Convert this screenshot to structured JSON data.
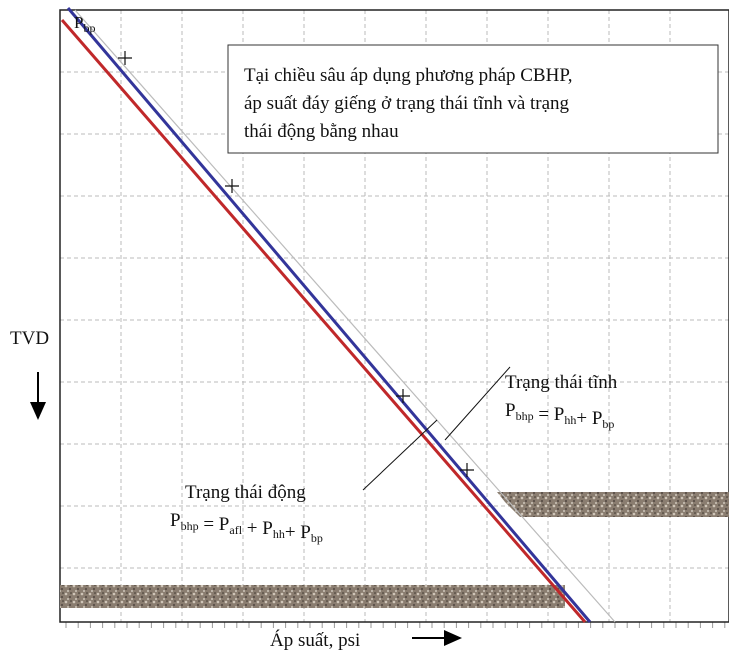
{
  "top_label": [
    [
      "P",
      "bp"
    ]
  ],
  "note": [
    "Tại chiều sâu áp dụng phương pháp CBHP,",
    "áp suất đáy giếng ở trạng thái tĩnh và trạng",
    "thái động bằng nhau"
  ],
  "y_axis_label": "TVD",
  "x_axis_label": "Áp suất, psi",
  "static_state": {
    "label": "Trạng thái tĩnh",
    "formula": [
      [
        "P",
        "bhp"
      ],
      [
        " = P",
        "hh"
      ],
      [
        "+ P",
        "bp"
      ]
    ]
  },
  "dynamic_state": {
    "label": "Trạng thái động",
    "formula": [
      [
        "P",
        "bhp"
      ],
      [
        " = P",
        "afl"
      ],
      [
        " + P",
        "hh"
      ],
      [
        "+ P",
        "bp"
      ]
    ]
  }
}
